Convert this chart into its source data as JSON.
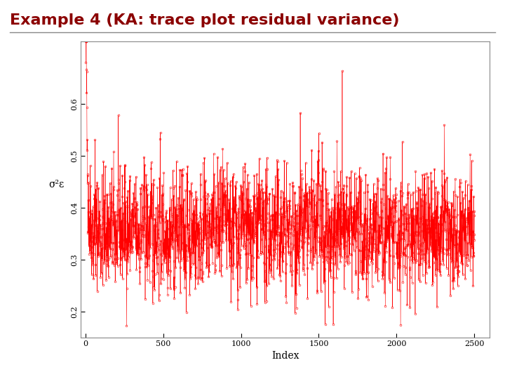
{
  "title": "Example 4 (KA: trace plot residual variance)",
  "title_color": "#8B0000",
  "title_fontsize": 16,
  "title_bold": true,
  "xlabel": "Index",
  "ylabel": "σ²ε",
  "n_points": 2500,
  "seed": 42,
  "mean": 0.355,
  "std": 0.055,
  "ylim": [
    0.15,
    0.72
  ],
  "xlim": [
    -30,
    2600
  ],
  "xticks": [
    0,
    500,
    1000,
    1500,
    2000,
    2500
  ],
  "yticks": [
    0.2,
    0.3,
    0.4,
    0.5,
    0.6
  ],
  "line_color": "#FF0000",
  "marker_color": "#FF0000",
  "marker_size": 2.0,
  "linewidth": 0.4,
  "bg_color": "#FFFFFF",
  "initial_spike_val": 0.68,
  "initial_spike_index": 10
}
